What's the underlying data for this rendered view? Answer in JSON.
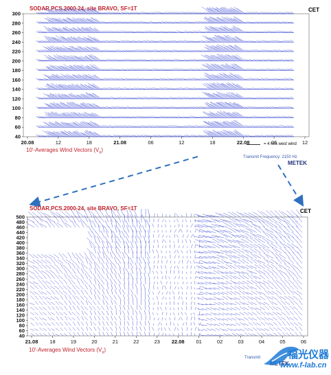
{
  "colors": {
    "accent_red": "#c0202a",
    "vector_blue": "#2233cc",
    "arrow_blue": "#2f6fbf",
    "watermark_blue": "#1e7bd6"
  },
  "top_chart": {
    "title": "SODAR.PCS.2000-24, site BRAVO, SF=1T",
    "timezone": "CET",
    "footer_label": "10'-Averages Wind Vectors (V",
    "footer_sub": "x",
    "footer_close": ")",
    "legend_text": "= 4 m/s west wind",
    "transmit_text": "Transmit Frequency: 2150 Hz",
    "brand": "METEK"
  },
  "bottom_chart": {
    "title": "SODAR.PCS.2000-24, site BRAVO, SF=1T",
    "timezone": "CET",
    "footer_label": "10'-Averages Wind Vectors (V",
    "footer_sub": "x",
    "footer_close": ")",
    "transmit_text": "Transmit",
    "brand": "METEK"
  },
  "watermark": {
    "text": "福光仪器",
    "url": "www.f-lab.cn"
  },
  "chart_data": [
    {
      "type": "wind-vector-time-height",
      "title": "SODAR.PCS.2000-24, site BRAVO, SF=1T",
      "xlabel": "10'-Averages Wind Vectors (Vx)",
      "y_ticks": [
        300,
        280,
        260,
        240,
        220,
        200,
        180,
        160,
        140,
        120,
        100,
        80,
        60,
        40
      ],
      "ylim": [
        40,
        300
      ],
      "x_ticks": [
        "20.08",
        "12",
        "18",
        "21.08",
        "06",
        "12",
        "18",
        "22.08",
        "06",
        "12"
      ],
      "grid": false
    },
    {
      "type": "wind-vector-time-height",
      "title": "SODAR.PCS.2000-24, site BRAVO, SF=1T",
      "xlabel": "10'-Averages Wind Vectors (Vx)",
      "y_ticks": [
        500,
        480,
        460,
        440,
        420,
        400,
        380,
        360,
        340,
        320,
        300,
        280,
        260,
        240,
        220,
        200,
        180,
        160,
        140,
        120,
        100,
        80,
        60,
        40
      ],
      "ylim": [
        40,
        500
      ],
      "x_ticks": [
        "21.08",
        "18",
        "19",
        "20",
        "21",
        "22",
        "23",
        "22.08",
        "01",
        "02",
        "03",
        "04",
        "05",
        "06"
      ],
      "grid": false
    }
  ]
}
